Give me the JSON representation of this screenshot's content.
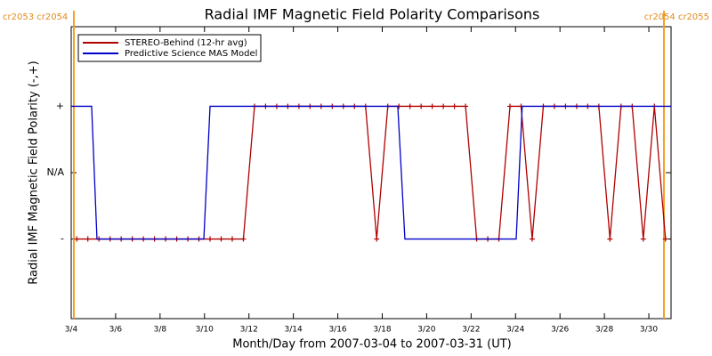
{
  "chart_data": {
    "type": "line",
    "title": "Radial IMF Magnetic Field Polarity Comparisons",
    "x_label": "Month/Day from 2007-03-04 to 2007-03-31 (UT)",
    "y_label": "Radial IMF Magnetic Field Polarity (-,+)",
    "xlim": [
      4,
      31
    ],
    "xticks": [
      {
        "value": 4,
        "label": "3/4"
      },
      {
        "value": 6,
        "label": "3/6"
      },
      {
        "value": 8,
        "label": "3/8"
      },
      {
        "value": 10,
        "label": "3/10"
      },
      {
        "value": 12,
        "label": "3/12"
      },
      {
        "value": 14,
        "label": "3/14"
      },
      {
        "value": 16,
        "label": "3/16"
      },
      {
        "value": 18,
        "label": "3/18"
      },
      {
        "value": 20,
        "label": "3/20"
      },
      {
        "value": 22,
        "label": "3/22"
      },
      {
        "value": 24,
        "label": "3/24"
      },
      {
        "value": 26,
        "label": "3/26"
      },
      {
        "value": 28,
        "label": "3/28"
      },
      {
        "value": 30,
        "label": "3/30"
      }
    ],
    "ylim": [
      -2.2,
      2.2
    ],
    "yticks": [
      {
        "value": 1,
        "label": "+"
      },
      {
        "value": 0,
        "label": "N/A"
      },
      {
        "value": -1,
        "label": "-"
      }
    ],
    "legend": "upper left",
    "cr_boundaries": [
      {
        "x": 4.12,
        "label": "cr2053 cr2054",
        "color": "#f5a02a"
      },
      {
        "x": 30.68,
        "label": "cr2054 cr2055",
        "color": "#f5a02a"
      }
    ],
    "series": [
      {
        "name": "STEREO-Behind (12-hr avg)",
        "color": "#b00000",
        "markers": true,
        "x": [
          4.25,
          4.75,
          5.25,
          5.75,
          6.25,
          6.75,
          7.25,
          7.75,
          8.25,
          8.75,
          9.25,
          9.75,
          10.25,
          10.75,
          11.25,
          11.75,
          12.25,
          12.75,
          13.25,
          13.75,
          14.25,
          14.75,
          15.25,
          15.75,
          16.25,
          16.75,
          17.25,
          17.75,
          18.25,
          18.75,
          19.25,
          19.75,
          20.25,
          20.75,
          21.25,
          21.75,
          22.25,
          22.75,
          23.25,
          23.75,
          24.25,
          24.75,
          25.25,
          25.75,
          26.25,
          26.75,
          27.25,
          27.75,
          28.25,
          28.75,
          29.25,
          29.75,
          30.25,
          30.75
        ],
        "values": [
          -1,
          -1,
          -1,
          -1,
          -1,
          -1,
          -1,
          -1,
          -1,
          -1,
          -1,
          -1,
          -1,
          -1,
          -1,
          -1,
          1,
          1,
          1,
          1,
          1,
          1,
          1,
          1,
          1,
          1,
          1,
          -1,
          1,
          1,
          1,
          1,
          1,
          1,
          1,
          1,
          -1,
          -1,
          -1,
          1,
          1,
          -1,
          1,
          1,
          1,
          1,
          1,
          1,
          -1,
          1,
          1,
          -1,
          1,
          -1
        ]
      },
      {
        "name": "Predictive Science MAS Model",
        "color": "#0000c8",
        "markers": false,
        "x": [
          4,
          4.92,
          5.16,
          9.97,
          10.25,
          18.7,
          19.02,
          24.03,
          24.3,
          31
        ],
        "values": [
          1,
          1,
          -1,
          -1,
          1,
          1,
          -1,
          -1,
          1,
          1
        ]
      }
    ]
  }
}
